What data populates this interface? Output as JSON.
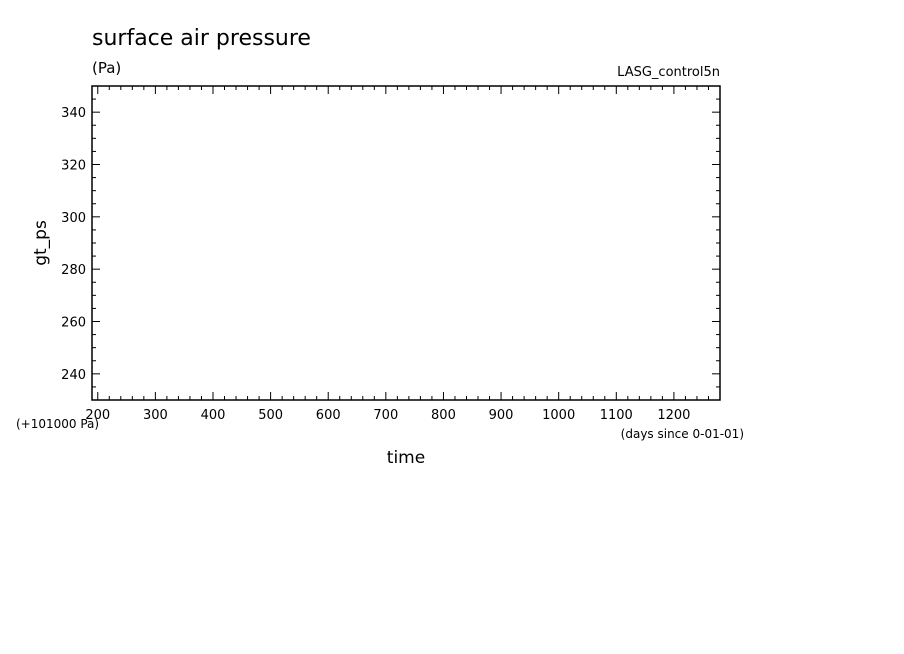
{
  "chart_data": {
    "type": "line",
    "title": "surface air pressure",
    "units": "(Pa)",
    "dataset": "LASG_control5n",
    "xlabel": "time",
    "ylabel": "gt_ps",
    "x_note": "(days since 0-01-01)",
    "y_offset_note": "(+101000 Pa)",
    "xlim": [
      190,
      1280
    ],
    "ylim": [
      230,
      350
    ],
    "x_ticks": [
      "200",
      "300",
      "400",
      "500",
      "600",
      "700",
      "800",
      "900",
      "1000",
      "1100",
      "1200"
    ],
    "y_ticks": [
      "240",
      "260",
      "280",
      "300",
      "320",
      "340"
    ],
    "series": []
  }
}
